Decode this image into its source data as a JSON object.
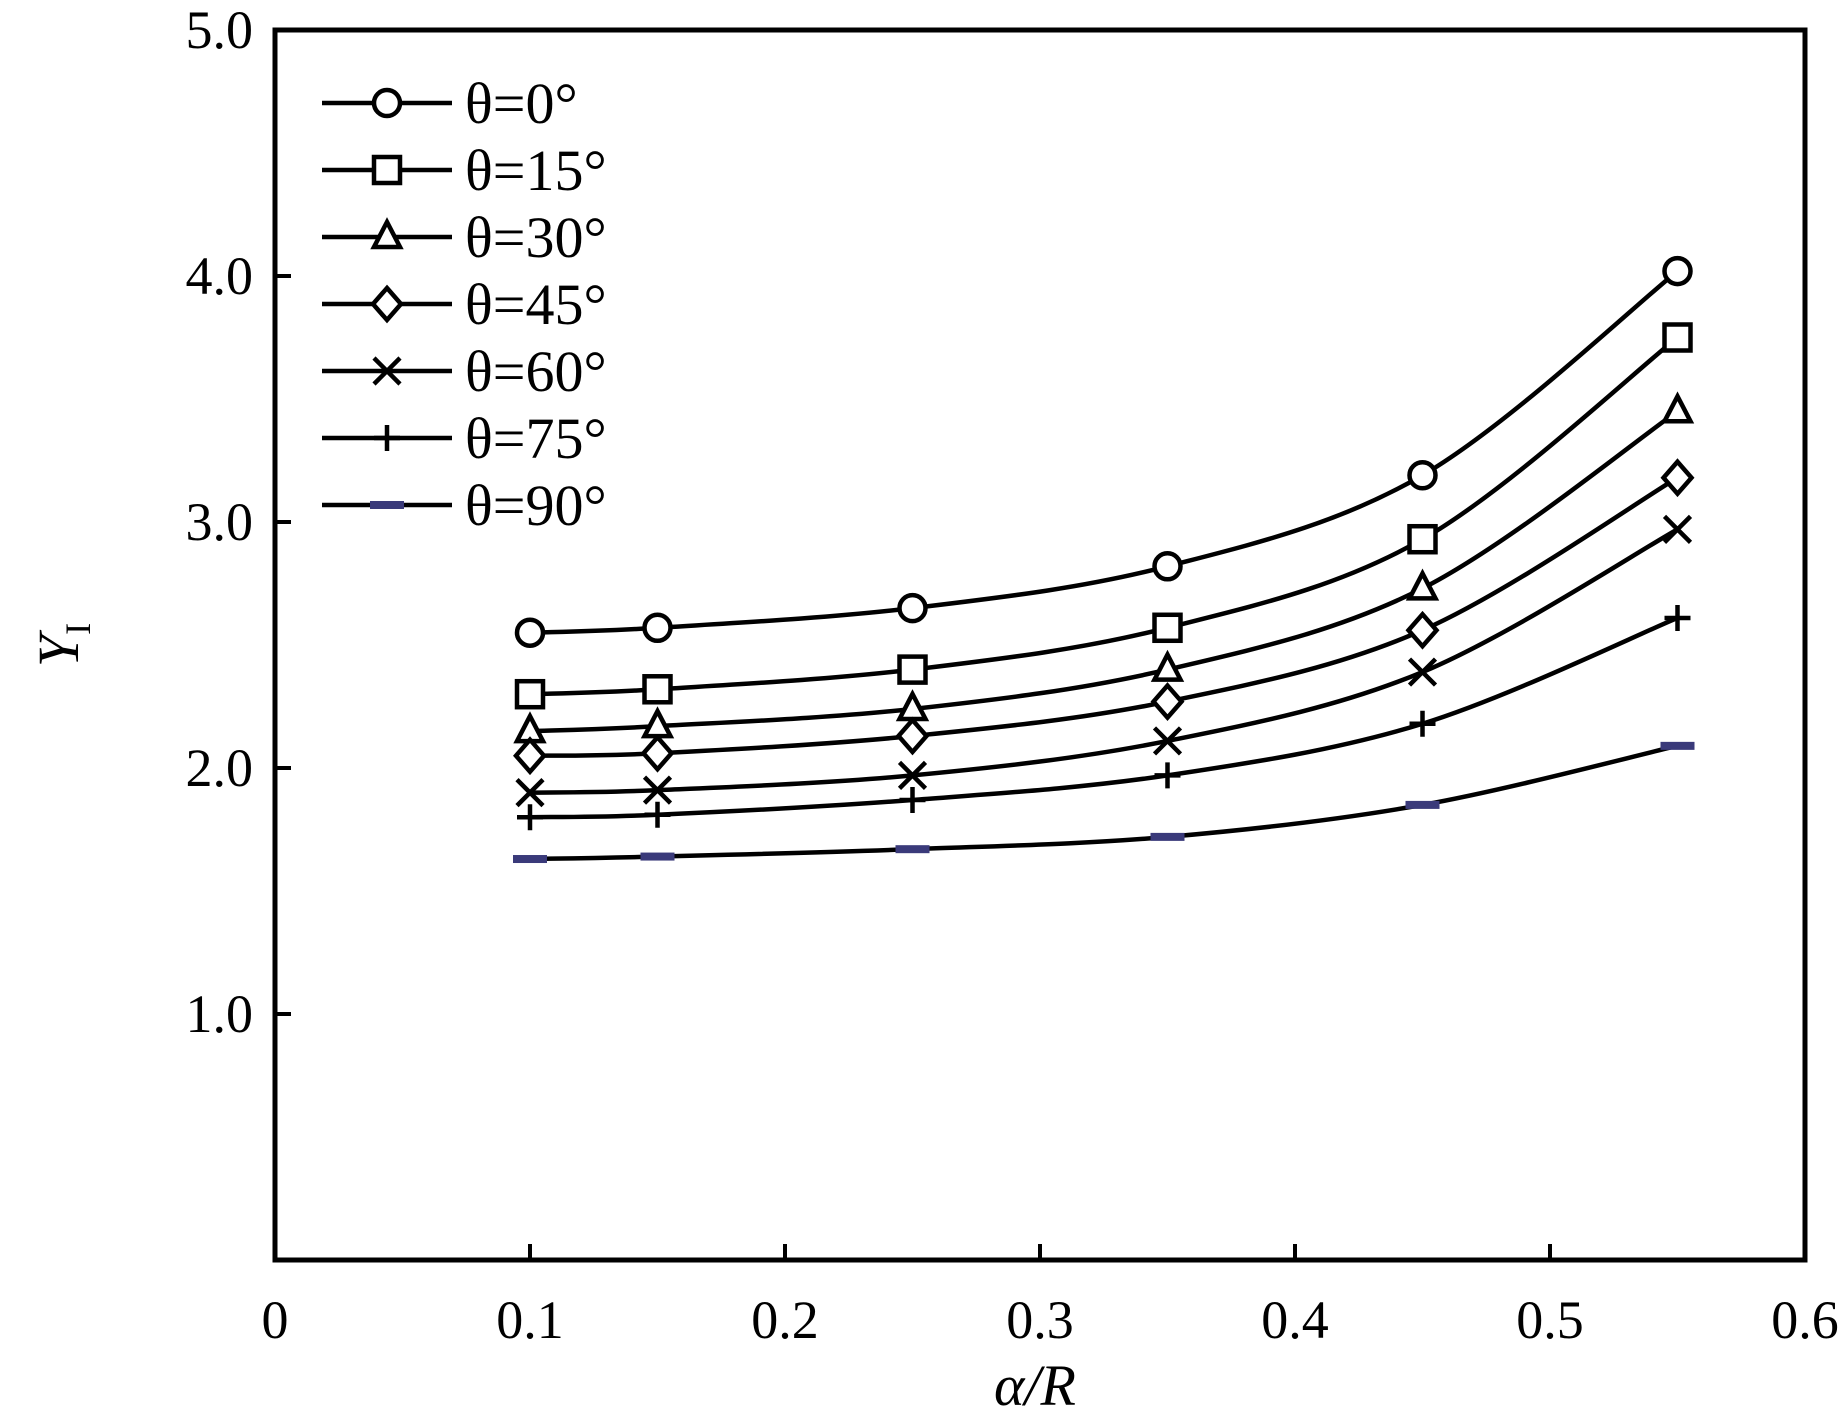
{
  "chart_data": {
    "type": "line",
    "title": "",
    "xlabel": "α/R",
    "ylabel_main": "Y",
    "ylabel_sub": "I",
    "xlim": [
      0,
      0.6
    ],
    "ylim": [
      0,
      5.0
    ],
    "xticks": [
      0,
      0.1,
      0.2,
      0.3,
      0.4,
      0.5,
      0.6
    ],
    "xtick_labels": [
      "0",
      "0.1",
      "0.2",
      "0.3",
      "0.4",
      "0.5",
      "0.6"
    ],
    "yticks": [
      1.0,
      2.0,
      3.0,
      4.0,
      5.0
    ],
    "ytick_labels": [
      "1.0",
      "2.0",
      "3.0",
      "4.0",
      "5.0"
    ],
    "grid": false,
    "legend_position": "top-left",
    "x": [
      0.1,
      0.15,
      0.25,
      0.35,
      0.45,
      0.55
    ],
    "series": [
      {
        "name": "θ=0°",
        "marker": "circle",
        "color": "#000000",
        "values": [
          2.55,
          2.57,
          2.65,
          2.82,
          3.19,
          4.02
        ]
      },
      {
        "name": "θ=15°",
        "marker": "square",
        "color": "#000000",
        "values": [
          2.3,
          2.32,
          2.4,
          2.57,
          2.93,
          3.75
        ]
      },
      {
        "name": "θ=30°",
        "marker": "triangle",
        "color": "#000000",
        "values": [
          2.15,
          2.17,
          2.24,
          2.4,
          2.73,
          3.45
        ]
      },
      {
        "name": "θ=45°",
        "marker": "diamond",
        "color": "#000000",
        "values": [
          2.05,
          2.06,
          2.13,
          2.27,
          2.56,
          3.18
        ]
      },
      {
        "name": "θ=60°",
        "marker": "x",
        "color": "#000000",
        "values": [
          1.9,
          1.91,
          1.97,
          2.11,
          2.39,
          2.97
        ]
      },
      {
        "name": "θ=75°",
        "marker": "plus",
        "color": "#000000",
        "values": [
          1.8,
          1.81,
          1.87,
          1.97,
          2.18,
          2.61
        ]
      },
      {
        "name": "θ=90°",
        "marker": "dash",
        "color": "#3a3a7a",
        "values": [
          1.63,
          1.64,
          1.67,
          1.72,
          1.85,
          2.09
        ]
      }
    ]
  }
}
